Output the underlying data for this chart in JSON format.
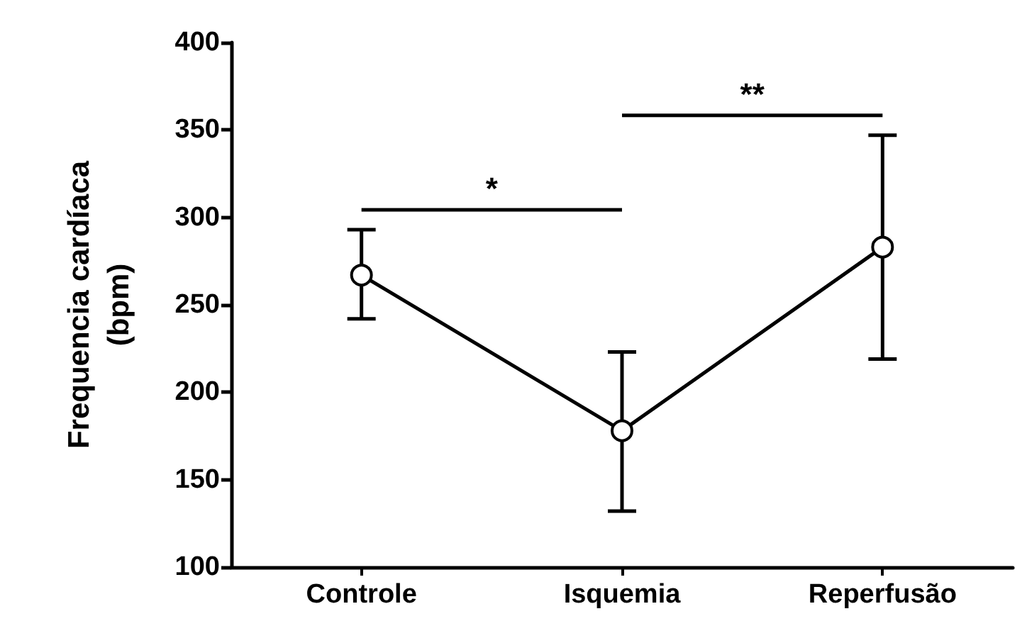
{
  "chart_data": {
    "type": "line",
    "ylabel": "Frequencia cardíaca\n(bpm)",
    "categories": [
      "Controle",
      "Isquemia",
      "Reperfusão"
    ],
    "series": [
      {
        "color": "#000000",
        "values": [
          267,
          178,
          283
        ],
        "errors": [
          [
            242,
            293
          ],
          [
            132,
            223
          ],
          [
            219,
            347
          ]
        ]
      }
    ],
    "ylim": [
      100,
      400
    ],
    "yticks": [
      100,
      150,
      200,
      250,
      300,
      350,
      400
    ],
    "grid": false,
    "marker": "circle",
    "line_style": "solid",
    "annotations": [
      "*",
      "**"
    ]
  }
}
